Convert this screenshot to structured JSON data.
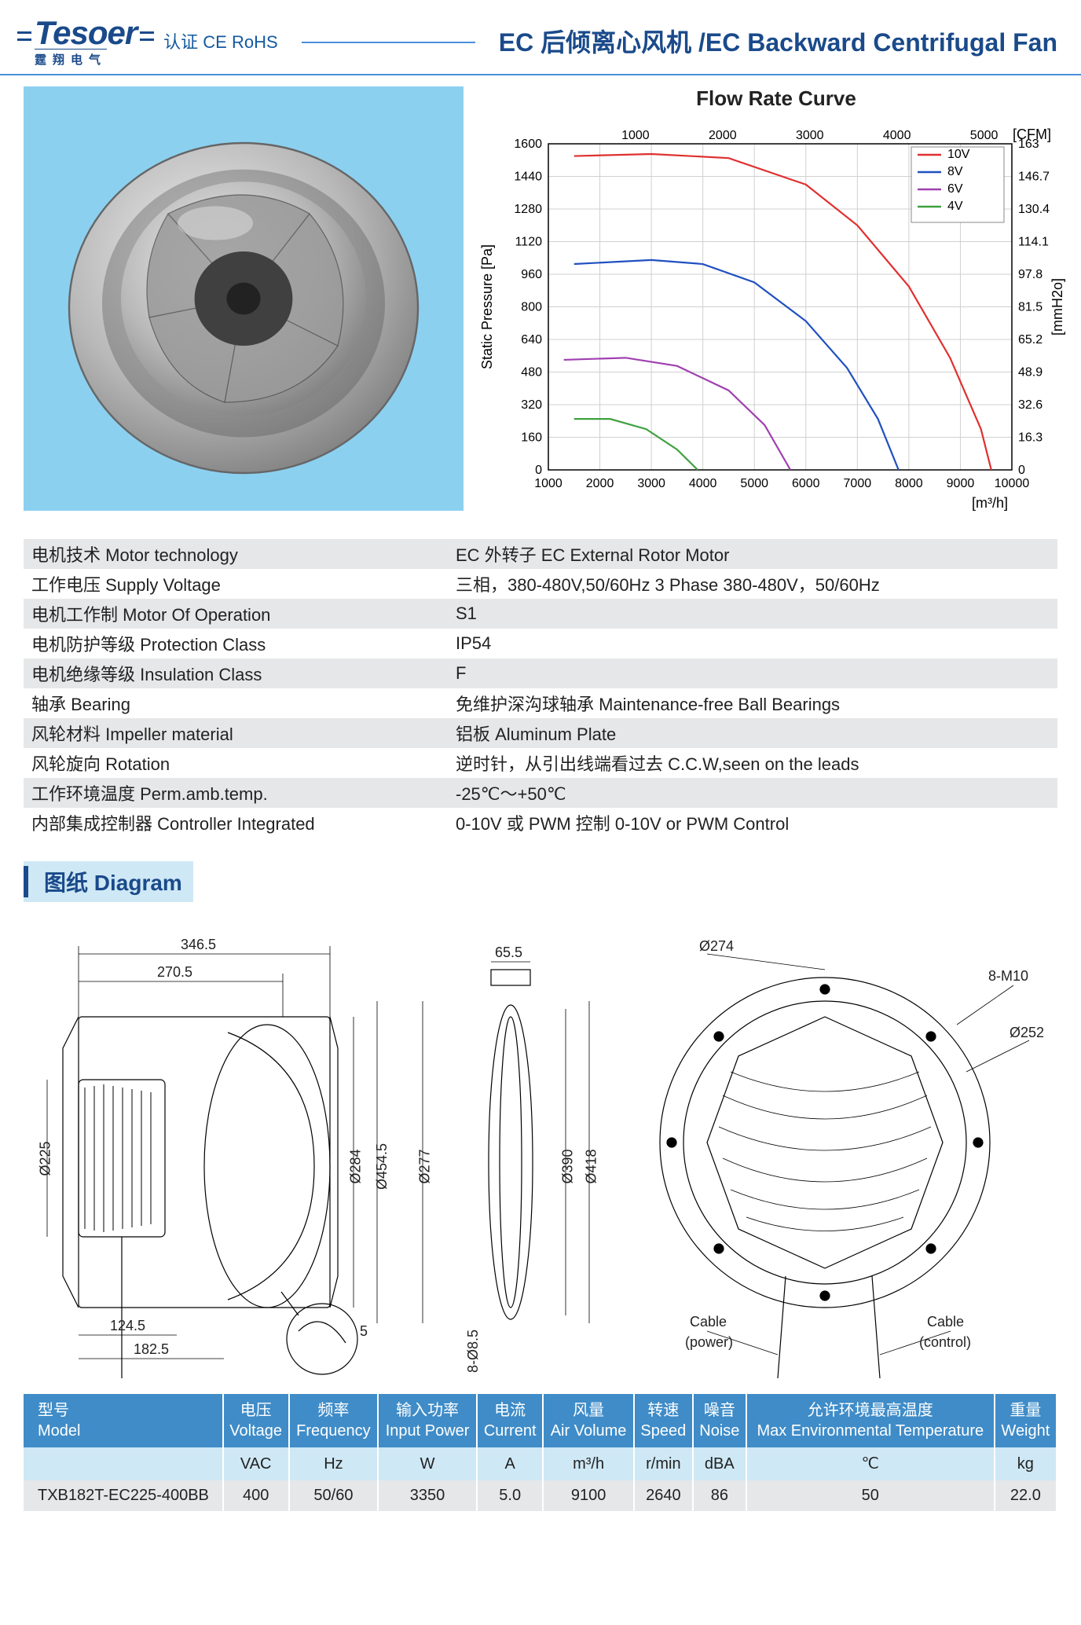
{
  "header": {
    "logo_text": "Tesoer",
    "logo_sub": "霆翔电气",
    "cert": "认证 CE RoHS",
    "title": "EC 后倾离心风机 /EC Backward Centrifugal Fan"
  },
  "chart": {
    "title": "Flow Rate Curve",
    "x_label_bottom": "[m³/h]",
    "x_label_top": "[CFM]",
    "y_label_left": "Static Pressure    [Pa]",
    "y_label_right": "[mmH2o]",
    "x_ticks_bottom": [
      1000,
      2000,
      3000,
      4000,
      5000,
      6000,
      7000,
      8000,
      9000,
      10000
    ],
    "x_ticks_top": [
      1000,
      2000,
      3000,
      4000,
      5000
    ],
    "y_ticks_left": [
      0,
      160,
      320,
      480,
      640,
      800,
      960,
      1120,
      1280,
      1440,
      1600
    ],
    "y_ticks_right": [
      0,
      16.3,
      32.6,
      48.9,
      65.2,
      81.5,
      97.8,
      114.1,
      130.4,
      146.7,
      163
    ],
    "xlim": [
      1000,
      10000
    ],
    "ylim": [
      0,
      1600
    ],
    "grid_color": "#d0d0d0",
    "axis_color": "#000000",
    "legend": [
      {
        "label": "10V",
        "color": "#e03030"
      },
      {
        "label": "8V",
        "color": "#2050c0"
      },
      {
        "label": "6V",
        "color": "#a040b0"
      },
      {
        "label": "4V",
        "color": "#40a040"
      }
    ],
    "series": {
      "10V": {
        "color": "#e03030",
        "points": [
          [
            1500,
            1540
          ],
          [
            3000,
            1550
          ],
          [
            4500,
            1530
          ],
          [
            6000,
            1400
          ],
          [
            7000,
            1200
          ],
          [
            8000,
            900
          ],
          [
            8800,
            550
          ],
          [
            9400,
            200
          ],
          [
            9600,
            0
          ]
        ]
      },
      "8V": {
        "color": "#2050c0",
        "points": [
          [
            1500,
            1010
          ],
          [
            3000,
            1030
          ],
          [
            4000,
            1010
          ],
          [
            5000,
            920
          ],
          [
            6000,
            730
          ],
          [
            6800,
            500
          ],
          [
            7400,
            250
          ],
          [
            7800,
            0
          ]
        ]
      },
      "6V": {
        "color": "#a040b0",
        "points": [
          [
            1300,
            540
          ],
          [
            2500,
            550
          ],
          [
            3500,
            510
          ],
          [
            4500,
            390
          ],
          [
            5200,
            220
          ],
          [
            5700,
            0
          ]
        ]
      },
      "4V": {
        "color": "#40a040",
        "points": [
          [
            1500,
            250
          ],
          [
            2200,
            250
          ],
          [
            2900,
            200
          ],
          [
            3500,
            100
          ],
          [
            3900,
            0
          ]
        ]
      }
    }
  },
  "specs": [
    {
      "k": "电机技术 Motor technology",
      "v": "EC 外转子 EC External Rotor Motor"
    },
    {
      "k": "工作电压 Supply Voltage",
      "v": "三相，380-480V,50/60Hz  3 Phase 380-480V，50/60Hz"
    },
    {
      "k": "电机工作制 Motor Of Operation",
      "v": "S1"
    },
    {
      "k": "电机防护等级 Protection Class",
      "v": "IP54"
    },
    {
      "k": "电机绝缘等级 Insulation Class",
      "v": "F"
    },
    {
      "k": "轴承 Bearing",
      "v": "免维护深沟球轴承 Maintenance-free Ball Bearings"
    },
    {
      "k": "风轮材料 Impeller material",
      "v": "铝板 Aluminum Plate"
    },
    {
      "k": "风轮旋向 Rotation",
      "v": "逆时针，从引出线端看过去 C.C.W,seen on the leads"
    },
    {
      "k": "工作环境温度 Perm.amb.temp.",
      "v": "-25℃～+50℃"
    },
    {
      "k": "内部集成控制器 Controller Integrated",
      "v": "0-10V 或 PWM 控制  0-10V or PWM Control"
    }
  ],
  "diagram_heading": "图纸 Diagram",
  "diagram_dims": {
    "L_346_5": "346.5",
    "L_270_5": "270.5",
    "L_65_5": "65.5",
    "d225": "Ø225",
    "d284": "Ø284",
    "d454_5": "Ø454.5",
    "d277": "Ø277",
    "d390": "Ø390",
    "d418": "Ø418",
    "d274": "Ø274",
    "d252": "Ø252",
    "M10": "8-M10",
    "L_124_5": "124.5",
    "L_182_5": "182.5",
    "t5": "5",
    "holes": "8-Ø8.5",
    "cable": "Cable",
    "power": "(power)",
    "control": "(control)"
  },
  "model_table": {
    "headers_row1": [
      {
        "cn": "型号",
        "en": "Model"
      },
      {
        "cn": "电压",
        "en": "Voltage"
      },
      {
        "cn": "频率",
        "en": "Frequency"
      },
      {
        "cn": "输入功率",
        "en": "Input Power"
      },
      {
        "cn": "电流",
        "en": "Current"
      },
      {
        "cn": "风量",
        "en": "Air Volume"
      },
      {
        "cn": "转速",
        "en": "Speed"
      },
      {
        "cn": "噪音",
        "en": "Noise"
      },
      {
        "cn": "允许环境最高温度",
        "en": "Max Environmental Temperature"
      },
      {
        "cn": "重量",
        "en": "Weight"
      }
    ],
    "headers_row2": [
      "",
      "VAC",
      "Hz",
      "W",
      "A",
      "m³/h",
      "r/min",
      "dBA",
      "℃",
      "kg"
    ],
    "rows": [
      [
        "TXB182T-EC225-400BB",
        "400",
        "50/60",
        "3350",
        "5.0",
        "9100",
        "2640",
        "86",
        "50",
        "22.0"
      ]
    ]
  }
}
